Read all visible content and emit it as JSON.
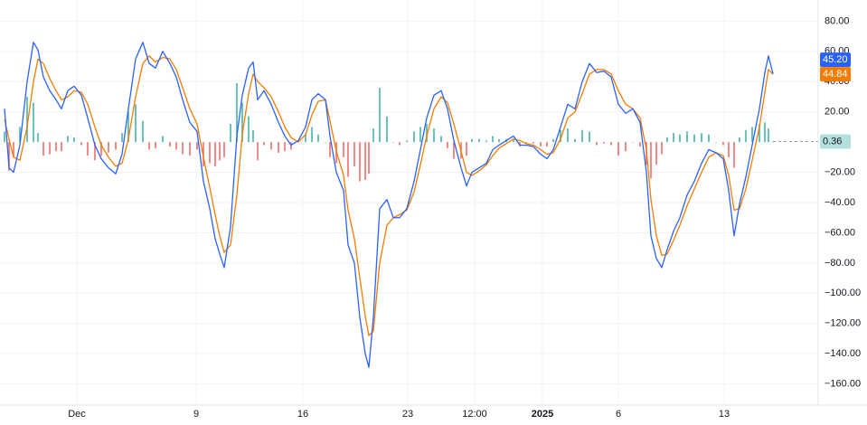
{
  "chart_data": {
    "type": "line",
    "x": [
      5,
      10,
      15,
      22,
      30,
      37,
      42,
      48,
      55,
      62,
      68,
      75,
      82,
      90,
      97,
      105,
      112,
      120,
      128,
      135,
      142,
      150,
      158,
      165,
      172,
      180,
      188,
      195,
      202,
      210,
      218,
      225,
      232,
      238,
      243,
      248,
      255,
      262,
      268,
      275,
      280,
      285,
      292,
      300,
      308,
      315,
      322,
      330,
      338,
      345,
      352,
      360,
      365,
      372,
      380,
      385,
      392,
      398,
      404,
      408,
      413,
      420,
      428,
      435,
      442,
      450,
      458,
      465,
      472,
      480,
      488,
      495,
      502,
      510,
      516,
      522,
      530,
      538,
      545,
      552,
      560,
      568,
      575,
      582,
      590,
      598,
      605,
      612,
      620,
      628,
      636,
      644,
      652,
      660,
      668,
      676,
      684,
      692,
      700,
      708,
      715,
      720,
      726,
      732,
      738,
      745,
      752,
      760,
      768,
      776,
      784,
      792,
      800,
      806,
      812,
      818,
      825,
      832,
      840,
      846,
      850,
      855
    ],
    "series": [
      {
        "type": "bar",
        "color": "#26a69a",
        "negative_color": "#ef5350",
        "values": [
          7,
          -19,
          -10,
          10,
          30,
          26,
          6,
          -9,
          -8,
          -6,
          -6,
          4,
          3,
          -2,
          -9,
          -12,
          -9,
          -7,
          -5,
          6,
          20,
          25,
          14,
          -5,
          -4,
          4,
          -3,
          -5,
          -8,
          -9,
          -5,
          -16,
          -14,
          -16,
          -12,
          -10,
          12,
          39,
          26,
          17,
          8,
          -12,
          -2,
          -5,
          -7,
          -6,
          -5,
          1,
          5,
          10,
          5,
          0,
          -10,
          -14,
          -10,
          -23,
          -16,
          -26,
          -25,
          -21,
          9,
          36,
          17,
          0,
          -2,
          1,
          7,
          10,
          12,
          9,
          4,
          -4,
          -11,
          -11,
          -9,
          2,
          2,
          1,
          4,
          2,
          2,
          2,
          -3,
          -1,
          -1,
          -3,
          -3,
          2,
          8,
          9,
          2,
          8,
          7,
          -2,
          -1,
          -2,
          -9,
          -6,
          0,
          -3,
          -15,
          -24,
          -15,
          -8,
          3,
          6,
          5,
          7,
          5,
          6,
          5,
          0,
          -2,
          -10,
          -17,
          3,
          8,
          10,
          12,
          13,
          9,
          0.36
        ],
        "last": {
          "value": 0.36,
          "label": "0.36"
        }
      },
      {
        "type": "line",
        "color": "#f57c00",
        "values": [
          15,
          2,
          -10,
          -12,
          10,
          40,
          55,
          52,
          42,
          34,
          28,
          30,
          34,
          33,
          25,
          10,
          -2,
          -10,
          -16,
          -14,
          2,
          30,
          52,
          57,
          53,
          56,
          55,
          48,
          36,
          22,
          12,
          -10,
          -30,
          -48,
          -62,
          -73,
          -68,
          -35,
          5,
          32,
          45,
          40,
          36,
          30,
          20,
          10,
          3,
          0,
          5,
          18,
          27,
          28,
          14,
          -6,
          -22,
          -45,
          -64,
          -90,
          -115,
          -128,
          -125,
          -80,
          -55,
          -50,
          -48,
          -45,
          -33,
          -15,
          4,
          22,
          30,
          26,
          12,
          -6,
          -20,
          -22,
          -19,
          -15,
          -9,
          -4,
          -1,
          2,
          1,
          -1,
          -2,
          -5,
          -8,
          -7,
          2,
          16,
          20,
          32,
          45,
          48,
          48,
          45,
          34,
          25,
          22,
          16,
          -5,
          -38,
          -62,
          -75,
          -74,
          -65,
          -55,
          -42,
          -31,
          -20,
          -10,
          -7,
          -9,
          -22,
          -45,
          -44,
          -31,
          -12,
          10,
          33,
          48,
          44.84
        ],
        "last": {
          "value": 44.84,
          "label": "44.84"
        }
      },
      {
        "type": "line",
        "color": "#2962ff",
        "values": [
          22,
          -17,
          -20,
          -2,
          40,
          66,
          61,
          43,
          34,
          28,
          22,
          34,
          37,
          31,
          16,
          -2,
          -11,
          -17,
          -21,
          -8,
          22,
          55,
          66,
          52,
          49,
          60,
          52,
          43,
          28,
          13,
          7,
          -26,
          -44,
          -64,
          -74,
          -83,
          -56,
          4,
          31,
          49,
          53,
          28,
          34,
          25,
          13,
          4,
          -2,
          1,
          10,
          28,
          32,
          28,
          4,
          -20,
          -32,
          -68,
          -80,
          -116,
          -140,
          -149,
          -116,
          -44,
          -38,
          -50,
          -50,
          -44,
          -26,
          -5,
          16,
          31,
          34,
          22,
          1,
          -17,
          -29,
          -20,
          -17,
          -14,
          -5,
          -2,
          1,
          4,
          -2,
          -2,
          -3,
          -8,
          -11,
          -5,
          10,
          25,
          22,
          40,
          52,
          46,
          47,
          43,
          25,
          19,
          22,
          13,
          -20,
          -62,
          -77,
          -83,
          -71,
          -59,
          -50,
          -35,
          -26,
          -14,
          -5,
          -7,
          -11,
          -32,
          -62,
          -41,
          -23,
          -2,
          22,
          46,
          57,
          45.2
        ],
        "last": {
          "value": 45.2,
          "label": "45.20"
        }
      }
    ],
    "xlim": [
      0,
      905
    ],
    "ylim": [
      -174,
      94
    ],
    "yticks": [
      {
        "value": 80,
        "label": "80.00"
      },
      {
        "value": 60,
        "label": "60.00"
      },
      {
        "value": 40,
        "label": "40.00"
      },
      {
        "value": 20,
        "label": "20.00"
      },
      {
        "value": -20,
        "label": "−20.00"
      },
      {
        "value": -40,
        "label": "−40.00"
      },
      {
        "value": -60,
        "label": "−60.00"
      },
      {
        "value": -80,
        "label": "−80.00"
      },
      {
        "value": -100,
        "label": "−100.00"
      },
      {
        "value": -120,
        "label": "−120.00"
      },
      {
        "value": -140,
        "label": "−140.00"
      },
      {
        "value": -160,
        "label": "−160.00"
      }
    ],
    "xticks": [
      {
        "value": 85,
        "label": "Dec"
      },
      {
        "value": 217,
        "label": "9"
      },
      {
        "value": 335,
        "label": "16"
      },
      {
        "value": 451,
        "label": "23"
      },
      {
        "value": 525,
        "label": "12:00"
      },
      {
        "value": 600,
        "label": "2025"
      },
      {
        "value": 684,
        "label": "6"
      },
      {
        "value": 801,
        "label": "13"
      }
    ],
    "grid": true
  }
}
